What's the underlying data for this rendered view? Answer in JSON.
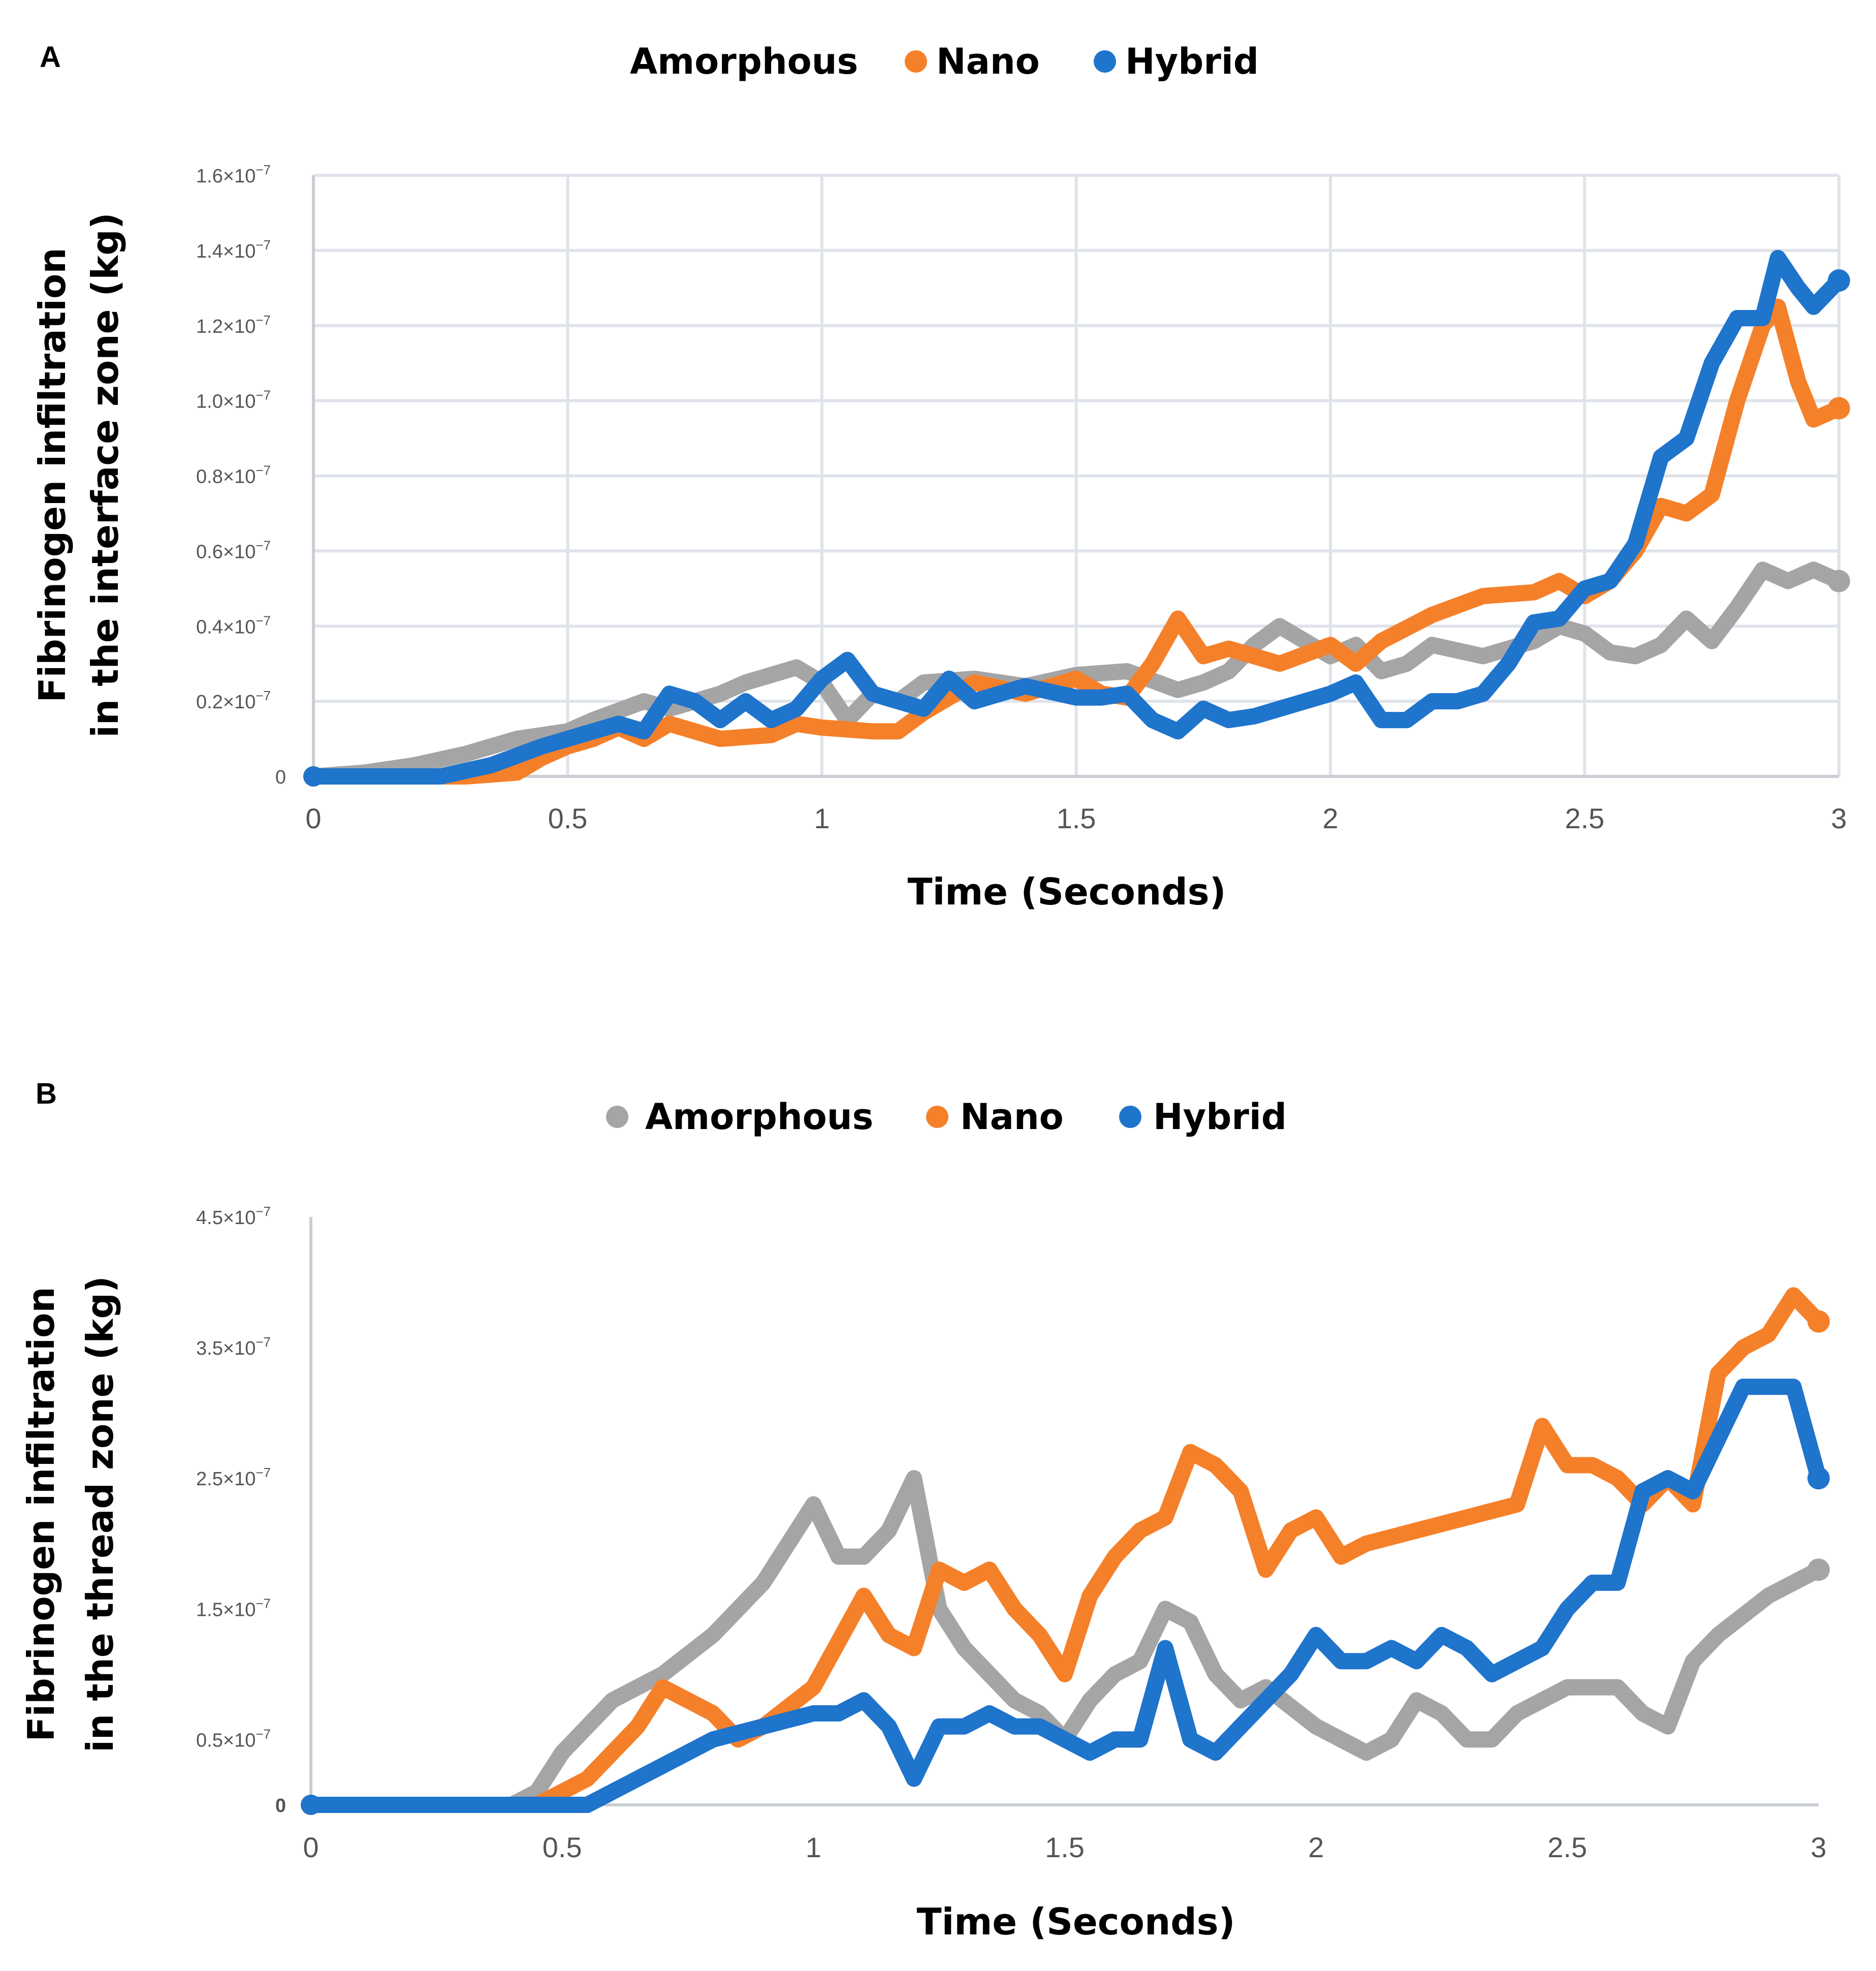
{
  "colors": {
    "amorphous": "#a5a5a5",
    "nano": "#f5802a",
    "hybrid": "#1f74cc",
    "tick_text": "#555555",
    "grid": "#dfe3ea"
  },
  "chart_data": [
    {
      "panel": "A",
      "type": "line",
      "title": "",
      "xlabel": "Time (Seconds)",
      "ylabel_lines": [
        "Fibrinogen infiltration",
        "in the interface zone (kg)"
      ],
      "xlim": [
        0,
        3
      ],
      "ylim": [
        0,
        1.6e-07
      ],
      "grid": true,
      "legend_position": "top-center",
      "legend_labels": [
        "Amorphous",
        "Nano",
        "Hybrid"
      ],
      "legend_markers": [
        false,
        true,
        true
      ],
      "x_ticks": [
        0,
        0.5,
        1,
        1.5,
        2,
        2.5,
        3
      ],
      "x_tick_labels": [
        "0",
        "0.5",
        "1",
        "1.5",
        "2",
        "2.5",
        "3"
      ],
      "y_ticks": [
        0,
        2e-08,
        4e-08,
        6e-08,
        8e-08,
        1e-07,
        1.2e-07,
        1.4e-07,
        1.6e-07
      ],
      "y_tick_labels": [
        {
          "mant": "0",
          "exp": ""
        },
        {
          "mant": "0.2×10",
          "exp": "−7"
        },
        {
          "mant": "0.4×10",
          "exp": "−7"
        },
        {
          "mant": "0.6×10",
          "exp": "−7"
        },
        {
          "mant": "0.8×10",
          "exp": "−7"
        },
        {
          "mant": "1.0×10",
          "exp": "−7"
        },
        {
          "mant": "1.2×10",
          "exp": "−7"
        },
        {
          "mant": "1.4×10",
          "exp": "−7"
        },
        {
          "mant": "1.6×10",
          "exp": "−7"
        }
      ],
      "series": [
        {
          "name": "Amorphous",
          "color_key": "amorphous",
          "x": [
            0,
            0.1,
            0.2,
            0.3,
            0.4,
            0.5,
            0.55,
            0.65,
            0.7,
            0.8,
            0.85,
            0.95,
            1.0,
            1.05,
            1.1,
            1.15,
            1.2,
            1.3,
            1.4,
            1.5,
            1.6,
            1.7,
            1.75,
            1.8,
            1.85,
            1.9,
            1.95,
            2.0,
            2.05,
            2.1,
            2.15,
            2.2,
            2.3,
            2.4,
            2.45,
            2.5,
            2.55,
            2.6,
            2.65,
            2.7,
            2.75,
            2.8,
            2.85,
            2.9,
            2.95,
            3.0
          ],
          "y": [
            0,
            1e-09,
            3e-09,
            6e-09,
            1e-08,
            1.2e-08,
            1.5e-08,
            2e-08,
            1.8e-08,
            2.2e-08,
            2.5e-08,
            2.9e-08,
            2.5e-08,
            1.5e-08,
            2.2e-08,
            2e-08,
            2.5e-08,
            2.6e-08,
            2.4e-08,
            2.7e-08,
            2.8e-08,
            2.3e-08,
            2.5e-08,
            2.8e-08,
            3.5e-08,
            4e-08,
            3.6e-08,
            3.2e-08,
            3.5e-08,
            2.8e-08,
            3e-08,
            3.5e-08,
            3.2e-08,
            3.6e-08,
            4e-08,
            3.8e-08,
            3.3e-08,
            3.2e-08,
            3.5e-08,
            4.2e-08,
            3.6e-08,
            4.5e-08,
            5.5e-08,
            5.2e-08,
            5.5e-08,
            5.2e-08
          ]
        },
        {
          "name": "Nano",
          "color_key": "nano",
          "x": [
            0,
            0.3,
            0.4,
            0.45,
            0.5,
            0.55,
            0.6,
            0.65,
            0.7,
            0.8,
            0.9,
            0.95,
            1.0,
            1.1,
            1.15,
            1.2,
            1.3,
            1.4,
            1.5,
            1.55,
            1.6,
            1.65,
            1.7,
            1.75,
            1.8,
            1.9,
            2.0,
            2.05,
            2.1,
            2.2,
            2.3,
            2.4,
            2.45,
            2.5,
            2.55,
            2.6,
            2.65,
            2.7,
            2.75,
            2.8,
            2.85,
            2.88,
            2.92,
            2.95,
            3.0
          ],
          "y": [
            0,
            0,
            1e-09,
            5e-09,
            8e-09,
            1e-08,
            1.3e-08,
            1e-08,
            1.4e-08,
            1e-08,
            1.1e-08,
            1.4e-08,
            1.3e-08,
            1.2e-08,
            1.2e-08,
            1.7e-08,
            2.5e-08,
            2.2e-08,
            2.6e-08,
            2.2e-08,
            2.1e-08,
            3e-08,
            4.2e-08,
            3.2e-08,
            3.4e-08,
            3e-08,
            3.5e-08,
            3e-08,
            3.6e-08,
            4.3e-08,
            4.8e-08,
            4.9e-08,
            5.2e-08,
            4.8e-08,
            5.2e-08,
            6e-08,
            7.2e-08,
            7e-08,
            7.5e-08,
            1e-07,
            1.2e-07,
            1.25e-07,
            1.05e-07,
            9.5e-08,
            9.8e-08
          ]
        },
        {
          "name": "Hybrid",
          "color_key": "hybrid",
          "x": [
            0,
            0.15,
            0.25,
            0.35,
            0.45,
            0.5,
            0.55,
            0.6,
            0.65,
            0.7,
            0.75,
            0.8,
            0.85,
            0.9,
            0.95,
            1.0,
            1.05,
            1.1,
            1.2,
            1.25,
            1.3,
            1.4,
            1.5,
            1.55,
            1.6,
            1.65,
            1.7,
            1.75,
            1.8,
            1.85,
            1.9,
            1.95,
            2.0,
            2.05,
            2.1,
            2.15,
            2.2,
            2.25,
            2.3,
            2.35,
            2.4,
            2.45,
            2.5,
            2.55,
            2.6,
            2.65,
            2.7,
            2.75,
            2.8,
            2.85,
            2.88,
            2.92,
            2.95,
            3.0
          ],
          "y": [
            0,
            0,
            0,
            3e-09,
            8e-09,
            1e-08,
            1.2e-08,
            1.4e-08,
            1.2e-08,
            2.2e-08,
            2e-08,
            1.5e-08,
            2e-08,
            1.5e-08,
            1.8e-08,
            2.6e-08,
            3.1e-08,
            2.2e-08,
            1.8e-08,
            2.6e-08,
            2e-08,
            2.4e-08,
            2.1e-08,
            2.1e-08,
            2.2e-08,
            1.5e-08,
            1.2e-08,
            1.8e-08,
            1.5e-08,
            1.6e-08,
            1.8e-08,
            2e-08,
            2.2e-08,
            2.5e-08,
            1.5e-08,
            1.5e-08,
            2e-08,
            2e-08,
            2.2e-08,
            3e-08,
            4.1e-08,
            4.2e-08,
            5e-08,
            5.2e-08,
            6.2e-08,
            8.5e-08,
            9e-08,
            1.1e-07,
            1.22e-07,
            1.22e-07,
            1.38e-07,
            1.3e-07,
            1.25e-07,
            1.32e-07
          ]
        }
      ]
    },
    {
      "panel": "B",
      "type": "line",
      "title": "",
      "xlabel": "Time (Seconds)",
      "ylabel_lines": [
        "Fibrinogen infiltration",
        "in the thread zone (kg)"
      ],
      "xlim": [
        0,
        3
      ],
      "ylim": [
        0,
        4.5e-07
      ],
      "grid": false,
      "legend_position": "top-center",
      "legend_labels": [
        "Amorphous",
        "Nano",
        "Hybrid"
      ],
      "legend_markers": [
        true,
        true,
        true
      ],
      "x_ticks": [
        0,
        0.5,
        1,
        1.5,
        2,
        2.5,
        3
      ],
      "x_tick_labels": [
        "0",
        "0.5",
        "1",
        "1.5",
        "2",
        "2.5",
        "3"
      ],
      "y_ticks": [
        0,
        5e-08,
        1.5e-07,
        2.5e-07,
        3.5e-07,
        4.5e-07
      ],
      "y_tick_labels": [
        {
          "mant": "0",
          "exp": ""
        },
        {
          "mant": "0.5×10",
          "exp": "−7"
        },
        {
          "mant": "1.5×10",
          "exp": "−7"
        },
        {
          "mant": "2.5×10",
          "exp": "−7"
        },
        {
          "mant": "3.5×10",
          "exp": "−7"
        },
        {
          "mant": "4.5×10",
          "exp": "−7"
        }
      ],
      "series": [
        {
          "name": "Amorphous",
          "color_key": "amorphous",
          "x": [
            0,
            0.4,
            0.45,
            0.5,
            0.55,
            0.6,
            0.7,
            0.8,
            0.9,
            1.0,
            1.05,
            1.1,
            1.15,
            1.2,
            1.25,
            1.3,
            1.4,
            1.45,
            1.5,
            1.55,
            1.6,
            1.65,
            1.7,
            1.75,
            1.8,
            1.85,
            1.9,
            2.0,
            2.05,
            2.1,
            2.15,
            2.2,
            2.25,
            2.3,
            2.35,
            2.4,
            2.5,
            2.6,
            2.65,
            2.7,
            2.75,
            2.8,
            2.9,
            3.0
          ],
          "y": [
            0,
            0,
            1e-08,
            4e-08,
            6e-08,
            8e-08,
            1e-07,
            1.3e-07,
            1.7e-07,
            2.3e-07,
            1.9e-07,
            1.9e-07,
            2.1e-07,
            2.5e-07,
            1.5e-07,
            1.2e-07,
            8e-08,
            7e-08,
            5e-08,
            8e-08,
            1e-07,
            1.1e-07,
            1.5e-07,
            1.4e-07,
            1e-07,
            8e-08,
            9e-08,
            6e-08,
            5e-08,
            4e-08,
            5e-08,
            8e-08,
            7e-08,
            5e-08,
            5e-08,
            7e-08,
            9e-08,
            9e-08,
            7e-08,
            6e-08,
            1.1e-07,
            1.3e-07,
            1.6e-07,
            1.8e-07
          ]
        },
        {
          "name": "Nano",
          "color_key": "nano",
          "x": [
            0,
            0.45,
            0.5,
            0.55,
            0.6,
            0.65,
            0.7,
            0.8,
            0.85,
            0.9,
            1.0,
            1.1,
            1.15,
            1.2,
            1.25,
            1.3,
            1.35,
            1.4,
            1.45,
            1.5,
            1.55,
            1.6,
            1.65,
            1.7,
            1.75,
            1.8,
            1.85,
            1.9,
            1.95,
            2.0,
            2.05,
            2.1,
            2.2,
            2.3,
            2.4,
            2.45,
            2.5,
            2.55,
            2.6,
            2.65,
            2.7,
            2.75,
            2.8,
            2.85,
            2.9,
            2.95,
            3.0
          ],
          "y": [
            0,
            0,
            1e-08,
            2e-08,
            4e-08,
            6e-08,
            9e-08,
            7e-08,
            5e-08,
            6e-08,
            9e-08,
            1.6e-07,
            1.3e-07,
            1.2e-07,
            1.8e-07,
            1.7e-07,
            1.8e-07,
            1.5e-07,
            1.3e-07,
            1e-07,
            1.6e-07,
            1.9e-07,
            2.1e-07,
            2.2e-07,
            2.7e-07,
            2.6e-07,
            2.4e-07,
            1.8e-07,
            2.1e-07,
            2.2e-07,
            1.9e-07,
            2e-07,
            2.1e-07,
            2.2e-07,
            2.3e-07,
            2.9e-07,
            2.6e-07,
            2.6e-07,
            2.5e-07,
            2.3e-07,
            2.5e-07,
            2.3e-07,
            3.3e-07,
            3.5e-07,
            3.6e-07,
            3.9e-07,
            3.7e-07
          ]
        },
        {
          "name": "Hybrid",
          "color_key": "hybrid",
          "x": [
            0,
            0.55,
            0.6,
            0.65,
            0.7,
            0.75,
            0.8,
            0.9,
            1.0,
            1.05,
            1.1,
            1.15,
            1.2,
            1.25,
            1.3,
            1.35,
            1.4,
            1.45,
            1.5,
            1.55,
            1.6,
            1.65,
            1.7,
            1.75,
            1.8,
            1.85,
            1.9,
            1.95,
            2.0,
            2.05,
            2.1,
            2.15,
            2.2,
            2.25,
            2.3,
            2.35,
            2.4,
            2.45,
            2.5,
            2.55,
            2.6,
            2.65,
            2.7,
            2.75,
            2.8,
            2.85,
            2.9,
            2.95,
            3.0
          ],
          "y": [
            0,
            0,
            1e-08,
            2e-08,
            3e-08,
            4e-08,
            5e-08,
            6e-08,
            7e-08,
            7e-08,
            8e-08,
            6e-08,
            2e-08,
            6e-08,
            6e-08,
            7e-08,
            6e-08,
            6e-08,
            5e-08,
            4e-08,
            5e-08,
            5e-08,
            1.2e-07,
            5e-08,
            4e-08,
            6e-08,
            8e-08,
            1e-07,
            1.3e-07,
            1.1e-07,
            1.1e-07,
            1.2e-07,
            1.1e-07,
            1.3e-07,
            1.2e-07,
            1e-07,
            1.1e-07,
            1.2e-07,
            1.5e-07,
            1.7e-07,
            1.7e-07,
            2.4e-07,
            2.5e-07,
            2.4e-07,
            2.8e-07,
            3.2e-07,
            3.2e-07,
            3.2e-07,
            2.5e-07
          ]
        }
      ]
    }
  ]
}
